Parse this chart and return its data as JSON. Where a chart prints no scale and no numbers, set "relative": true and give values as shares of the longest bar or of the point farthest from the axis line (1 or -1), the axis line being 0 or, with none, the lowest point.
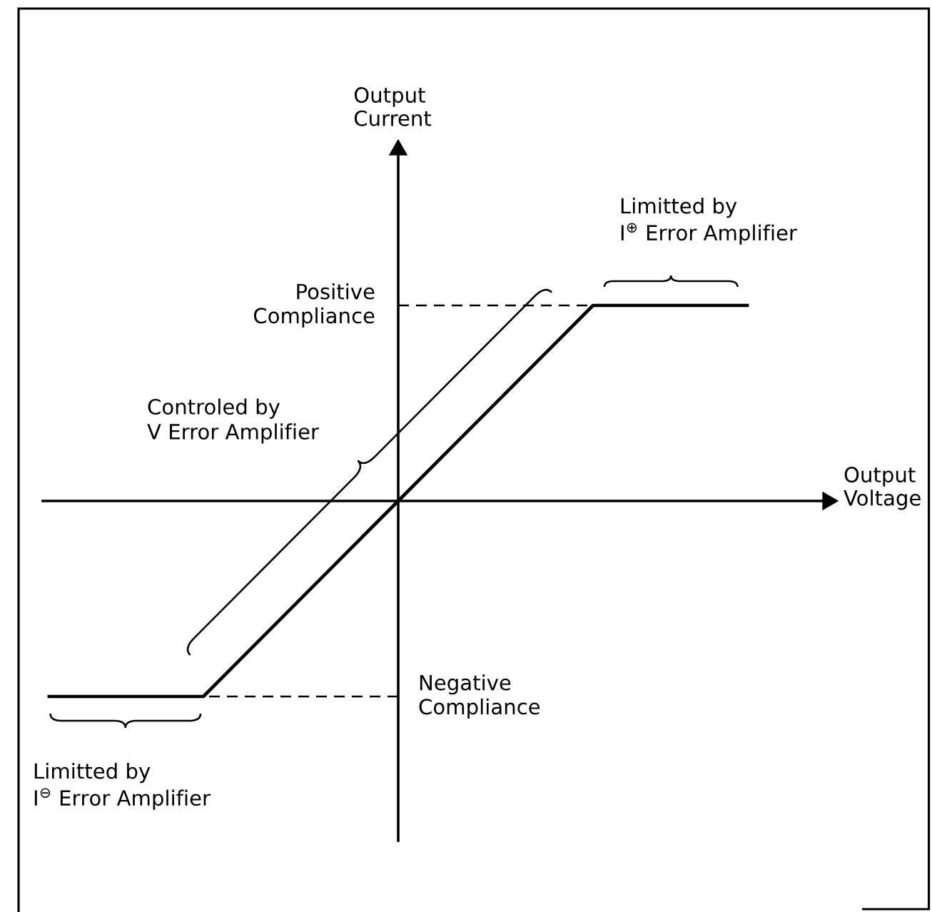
{
  "chart_data": {
    "type": "line",
    "xlabel": "Output\nVoltage",
    "categories": [
      null,
      null,
      null,
      null,
      null,
      null,
      null,
      null,
      null,
      null,
      null,
      null,
      null,
      null,
      null,
      null,
      null,
      null,
      null
    ],
    "values": [
      -1,
      -1,
      -1,
      -1,
      -1,
      -0.8,
      -0.6,
      -0.4,
      -0.2,
      0,
      0.2,
      0.4,
      0.6,
      0.8,
      1,
      1,
      1,
      1,
      1
    ],
    "color": "#000000",
    "relative": true,
    "ref_lines": [
      {
        "axis": "y",
        "value": 1,
        "label": "Positive\nCompliance",
        "line_style": "dashed",
        "color": "#000000"
      },
      {
        "axis": "y",
        "value": -1,
        "label": "Negative\nCompliance",
        "line_style": "dashed",
        "color": "#000000"
      }
    ],
    "annotations": [
      "Output\nCurrent",
      "Limitted by\nI$^{⊕}$ Error Amplifier",
      "Controled by\nV Error Amplifier",
      "Limitted by\nI$^{⊖}$ Error Amplifier"
    ]
  }
}
